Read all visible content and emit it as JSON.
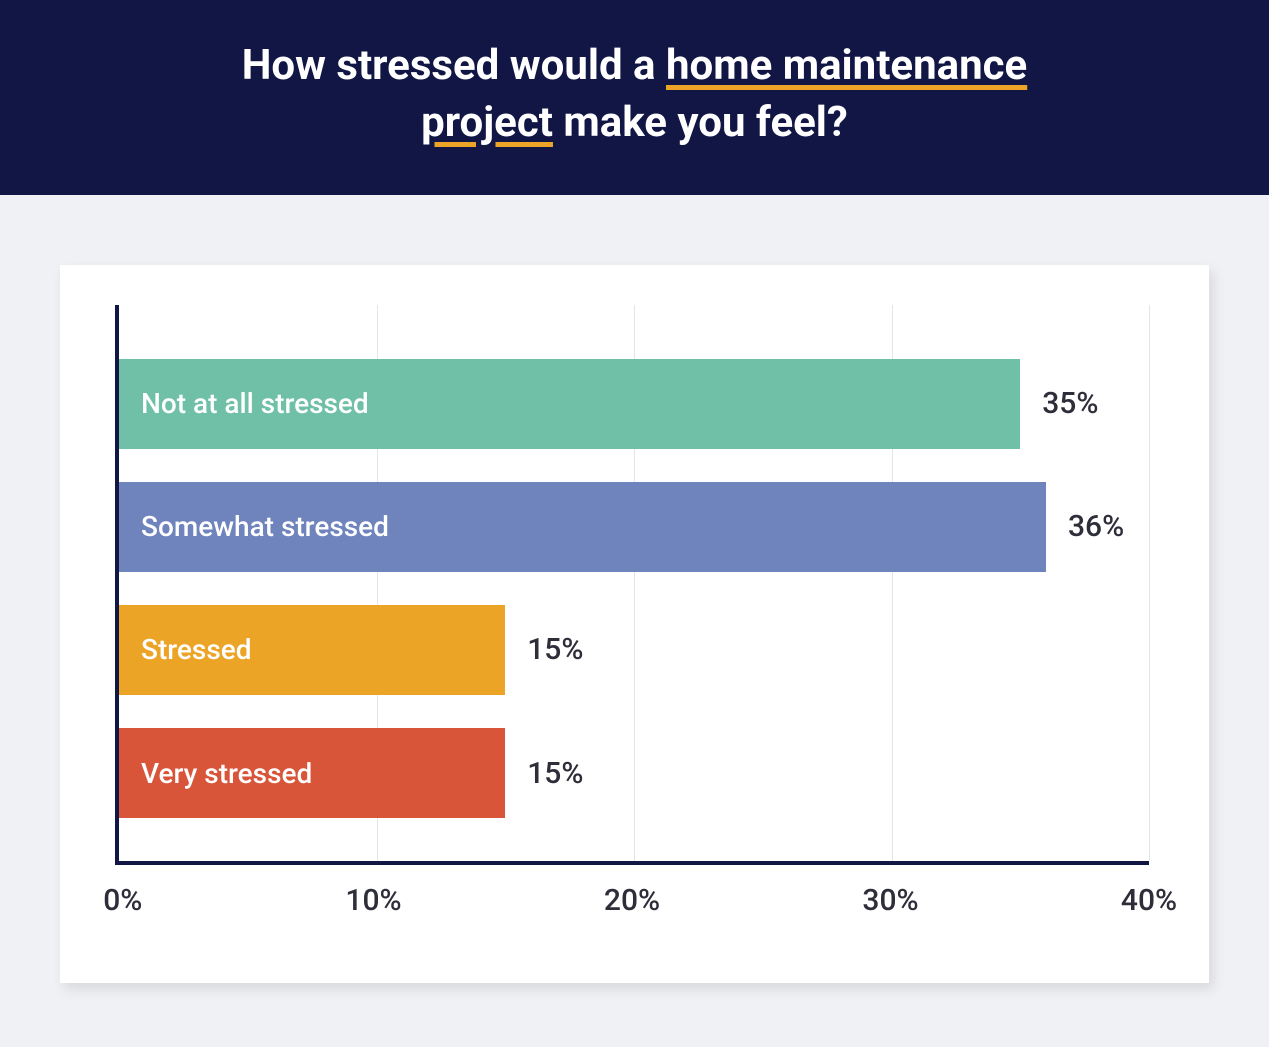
{
  "header": {
    "bg_color": "#111645",
    "title_color": "#ffffff",
    "underline_color": "#eca427",
    "title_pre": "How stressed would a ",
    "title_underlined_1": "home maintenance",
    "title_mid": " ",
    "title_underlined_2": "project",
    "title_post": " make you feel?"
  },
  "chart": {
    "type": "bar",
    "orientation": "horizontal",
    "card_bg": "#ffffff",
    "page_bg": "#f0f1f5",
    "axis_color": "#111645",
    "grid_color": "#e3e5ea",
    "value_text_color": "#2e2e3a",
    "bar_label_color": "#ffffff",
    "bar_label_fontsize": 28,
    "value_label_fontsize": 30,
    "tick_fontsize": 30,
    "xlim": [
      0,
      40
    ],
    "xtick_step": 10,
    "xticks": [
      "0%",
      "10%",
      "20%",
      "30%",
      "40%"
    ],
    "bars": [
      {
        "label": "Not at all stressed",
        "value": 35,
        "value_label": "35%",
        "color": "#6fc0a6"
      },
      {
        "label": "Somewhat stressed",
        "value": 36,
        "value_label": "36%",
        "color": "#6f83bd"
      },
      {
        "label": "Stressed",
        "value": 15,
        "value_label": "15%",
        "color": "#eca427"
      },
      {
        "label": "Very stressed",
        "value": 15,
        "value_label": "15%",
        "color": "#d8553a"
      }
    ]
  }
}
